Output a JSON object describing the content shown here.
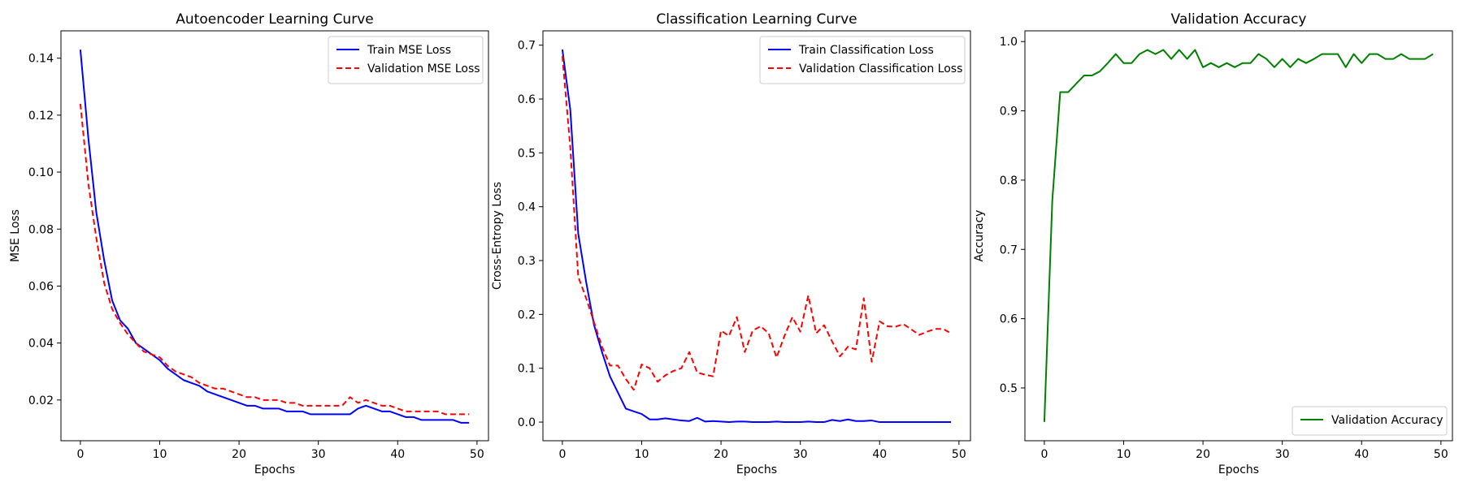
{
  "colors": {
    "train": "#0000ff",
    "validation": "#ff0000",
    "accuracy": "#008000"
  },
  "chart_data": [
    {
      "type": "line",
      "title": "Autoencoder Learning Curve",
      "xlabel": "Epochs",
      "ylabel": "MSE Loss",
      "xlim": [
        -2.45,
        51.45
      ],
      "ylim": [
        0.0057,
        0.1496
      ],
      "xticks": [
        0,
        10,
        20,
        30,
        40,
        50
      ],
      "yticks": [
        0.02,
        0.04,
        0.06,
        0.08,
        0.1,
        0.12,
        0.14
      ],
      "ytick_labels": [
        "0.02",
        "0.04",
        "0.06",
        "0.08",
        "0.10",
        "0.12",
        "0.14"
      ],
      "legend_position": "top-right",
      "series": [
        {
          "name": "Train MSE Loss",
          "color": "#0000ff",
          "style": "solid",
          "x": [
            0,
            1,
            2,
            3,
            4,
            5,
            6,
            7,
            8,
            9,
            10,
            11,
            12,
            13,
            14,
            15,
            16,
            17,
            18,
            19,
            20,
            21,
            22,
            23,
            24,
            25,
            26,
            27,
            28,
            29,
            30,
            31,
            32,
            33,
            34,
            35,
            36,
            37,
            38,
            39,
            40,
            41,
            42,
            43,
            44,
            45,
            46,
            47,
            48,
            49
          ],
          "values": [
            0.143,
            0.112,
            0.086,
            0.069,
            0.055,
            0.048,
            0.045,
            0.04,
            0.038,
            0.036,
            0.034,
            0.031,
            0.029,
            0.027,
            0.026,
            0.025,
            0.023,
            0.022,
            0.021,
            0.02,
            0.019,
            0.018,
            0.018,
            0.017,
            0.017,
            0.017,
            0.016,
            0.016,
            0.016,
            0.015,
            0.015,
            0.015,
            0.015,
            0.015,
            0.015,
            0.017,
            0.018,
            0.017,
            0.016,
            0.016,
            0.015,
            0.014,
            0.014,
            0.013,
            0.013,
            0.013,
            0.013,
            0.013,
            0.012,
            0.012
          ]
        },
        {
          "name": "Validation MSE Loss",
          "color": "#ff0000",
          "style": "dashed",
          "x": [
            0,
            1,
            2,
            3,
            4,
            5,
            6,
            7,
            8,
            9,
            10,
            11,
            12,
            13,
            14,
            15,
            16,
            17,
            18,
            19,
            20,
            21,
            22,
            23,
            24,
            25,
            26,
            27,
            28,
            29,
            30,
            31,
            32,
            33,
            34,
            35,
            36,
            37,
            38,
            39,
            40,
            41,
            42,
            43,
            44,
            45,
            46,
            47,
            48,
            49
          ],
          "values": [
            0.124,
            0.096,
            0.077,
            0.061,
            0.052,
            0.047,
            0.043,
            0.04,
            0.037,
            0.036,
            0.035,
            0.032,
            0.03,
            0.029,
            0.028,
            0.026,
            0.025,
            0.024,
            0.024,
            0.023,
            0.022,
            0.021,
            0.021,
            0.02,
            0.02,
            0.02,
            0.019,
            0.019,
            0.018,
            0.018,
            0.018,
            0.018,
            0.018,
            0.018,
            0.021,
            0.019,
            0.02,
            0.019,
            0.018,
            0.018,
            0.017,
            0.016,
            0.016,
            0.016,
            0.016,
            0.016,
            0.015,
            0.015,
            0.015,
            0.015
          ]
        }
      ]
    },
    {
      "type": "line",
      "title": "Classification Learning Curve",
      "xlabel": "Epochs",
      "ylabel": "Cross-Entropy Loss",
      "xlim": [
        -2.45,
        51.45
      ],
      "ylim": [
        -0.0346,
        0.7266
      ],
      "xticks": [
        0,
        10,
        20,
        30,
        40,
        50
      ],
      "yticks": [
        0.0,
        0.1,
        0.2,
        0.3,
        0.4,
        0.5,
        0.6,
        0.7
      ],
      "ytick_labels": [
        "0.0",
        "0.1",
        "0.2",
        "0.3",
        "0.4",
        "0.5",
        "0.6",
        "0.7"
      ],
      "legend_position": "top-right",
      "series": [
        {
          "name": "Train Classification Loss",
          "color": "#0000ff",
          "style": "solid",
          "x": [
            0,
            1,
            2,
            3,
            4,
            5,
            6,
            7,
            8,
            9,
            10,
            11,
            12,
            13,
            14,
            15,
            16,
            17,
            18,
            19,
            20,
            21,
            22,
            23,
            24,
            25,
            26,
            27,
            28,
            29,
            30,
            31,
            32,
            33,
            34,
            35,
            36,
            37,
            38,
            39,
            40,
            41,
            42,
            43,
            44,
            45,
            46,
            47,
            48,
            49
          ],
          "values": [
            0.692,
            0.58,
            0.35,
            0.26,
            0.18,
            0.13,
            0.085,
            0.055,
            0.025,
            0.02,
            0.015,
            0.005,
            0.005,
            0.007,
            0.005,
            0.003,
            0.002,
            0.008,
            0.001,
            0.002,
            0.001,
            0.0,
            0.001,
            0.001,
            0.0,
            0.0,
            0.0,
            0.001,
            0.0,
            0.0,
            0.0,
            0.001,
            0.0,
            0.0,
            0.004,
            0.002,
            0.005,
            0.002,
            0.002,
            0.003,
            0.0,
            0.0,
            0.0,
            0.0,
            0.0,
            0.0,
            0.0,
            0.0,
            0.0,
            0.0
          ]
        },
        {
          "name": "Validation Classification Loss",
          "color": "#ff0000",
          "style": "dashed",
          "x": [
            0,
            1,
            2,
            3,
            4,
            5,
            6,
            7,
            8,
            9,
            10,
            11,
            12,
            13,
            14,
            15,
            16,
            17,
            18,
            19,
            20,
            21,
            22,
            23,
            24,
            25,
            26,
            27,
            28,
            29,
            30,
            31,
            32,
            33,
            34,
            35,
            36,
            37,
            38,
            39,
            40,
            41,
            42,
            43,
            44,
            45,
            46,
            47,
            48,
            49
          ],
          "values": [
            0.68,
            0.51,
            0.27,
            0.23,
            0.185,
            0.14,
            0.105,
            0.105,
            0.08,
            0.06,
            0.107,
            0.1,
            0.075,
            0.087,
            0.095,
            0.1,
            0.13,
            0.092,
            0.088,
            0.085,
            0.17,
            0.16,
            0.195,
            0.13,
            0.17,
            0.178,
            0.165,
            0.12,
            0.16,
            0.195,
            0.168,
            0.235,
            0.165,
            0.18,
            0.15,
            0.122,
            0.14,
            0.135,
            0.23,
            0.112,
            0.187,
            0.178,
            0.177,
            0.182,
            0.172,
            0.162,
            0.168,
            0.173,
            0.173,
            0.165
          ]
        }
      ]
    },
    {
      "type": "line",
      "title": "Validation Accuracy",
      "xlabel": "Epochs",
      "ylabel": "Accuracy",
      "xlim": [
        -2.45,
        51.45
      ],
      "ylim": [
        0.4238,
        1.0155
      ],
      "xticks": [
        0,
        10,
        20,
        30,
        40,
        50
      ],
      "yticks": [
        0.5,
        0.6,
        0.7,
        0.8,
        0.9,
        1.0
      ],
      "ytick_labels": [
        "0.5",
        "0.6",
        "0.7",
        "0.8",
        "0.9",
        "1.0"
      ],
      "legend_position": "bottom-right",
      "series": [
        {
          "name": "Validation Accuracy",
          "color": "#008000",
          "style": "solid",
          "x": [
            0,
            1,
            2,
            3,
            4,
            5,
            6,
            7,
            8,
            9,
            10,
            11,
            12,
            13,
            14,
            15,
            16,
            17,
            18,
            19,
            20,
            21,
            22,
            23,
            24,
            25,
            26,
            27,
            28,
            29,
            30,
            31,
            32,
            33,
            34,
            35,
            36,
            37,
            38,
            39,
            40,
            41,
            42,
            43,
            44,
            45,
            46,
            47,
            48,
            49
          ],
          "values": [
            0.451,
            0.77,
            0.927,
            0.927,
            0.939,
            0.951,
            0.951,
            0.957,
            0.969,
            0.982,
            0.969,
            0.969,
            0.982,
            0.988,
            0.982,
            0.988,
            0.975,
            0.988,
            0.975,
            0.988,
            0.963,
            0.969,
            0.963,
            0.969,
            0.963,
            0.969,
            0.969,
            0.982,
            0.975,
            0.963,
            0.975,
            0.963,
            0.975,
            0.969,
            0.975,
            0.982,
            0.982,
            0.982,
            0.963,
            0.982,
            0.969,
            0.982,
            0.982,
            0.975,
            0.975,
            0.982,
            0.975,
            0.975,
            0.975,
            0.982
          ]
        }
      ]
    }
  ]
}
